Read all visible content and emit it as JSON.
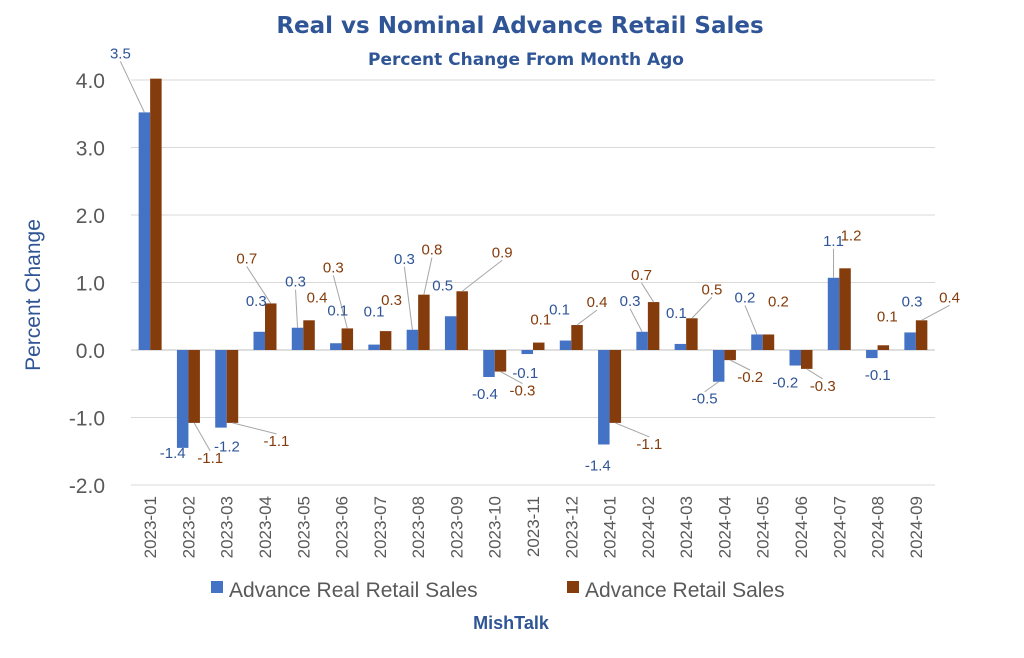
{
  "chart_data": {
    "type": "bar",
    "title": "Real vs Nominal Advance Retail Sales",
    "subtitle": "Percent Change From Month Ago",
    "ylabel": "Percent Change",
    "xlabel": "",
    "footer": "MishTalk",
    "ylim": [
      -2.0,
      4.0
    ],
    "yticks": [
      "4.0",
      "3.0",
      "2.0",
      "1.0",
      "0.0",
      "-1.0",
      "-2.0"
    ],
    "grid": true,
    "legend_position": "bottom",
    "categories": [
      "2023-01",
      "2023-02",
      "2023-03",
      "2023-04",
      "2023-05",
      "2023-06",
      "2023-07",
      "2023-08",
      "2023-09",
      "2023-10",
      "2023-11",
      "2023-12",
      "2024-01",
      "2024-02",
      "2024-03",
      "2024-04",
      "2024-05",
      "2024-06",
      "2024-07",
      "2024-08",
      "2024-09"
    ],
    "series": [
      {
        "name": "Advance Real Retail Sales",
        "color": "#4472c4",
        "label_color": "#2f5597",
        "values": [
          3.52,
          -1.45,
          -1.15,
          0.27,
          0.33,
          0.1,
          0.08,
          0.3,
          0.5,
          -0.4,
          -0.06,
          0.14,
          -1.4,
          0.27,
          0.09,
          -0.47,
          0.23,
          -0.23,
          1.07,
          -0.12,
          0.26
        ],
        "labels": [
          "3.5",
          "-1.4",
          "-1.2",
          "0.3",
          "0.3",
          "0.1",
          "0.1",
          "0.3",
          "0.5",
          "-0.4",
          "-0.1",
          "0.1",
          "-1.4",
          "0.3",
          "0.1",
          "-0.5",
          "0.2",
          "-0.2",
          "1.1",
          "-0.1",
          "0.3"
        ]
      },
      {
        "name": "Advance Retail Sales",
        "color": "#843c0c",
        "label_color": "#843c0c",
        "values": [
          4.02,
          -1.08,
          -1.08,
          0.69,
          0.44,
          0.32,
          0.28,
          0.82,
          0.87,
          -0.32,
          0.11,
          0.37,
          -1.08,
          0.71,
          0.47,
          -0.15,
          0.23,
          -0.28,
          1.21,
          0.07,
          0.44
        ],
        "labels": [
          "",
          "-1.1",
          "-1.1",
          "0.7",
          "0.4",
          "0.3",
          "0.3",
          "0.8",
          "0.9",
          "-0.3",
          "0.1",
          "0.4",
          "-1.1",
          "0.7",
          "0.5",
          "-0.2",
          "0.2",
          "-0.3",
          "1.2",
          "0.1",
          "0.4"
        ]
      }
    ]
  }
}
